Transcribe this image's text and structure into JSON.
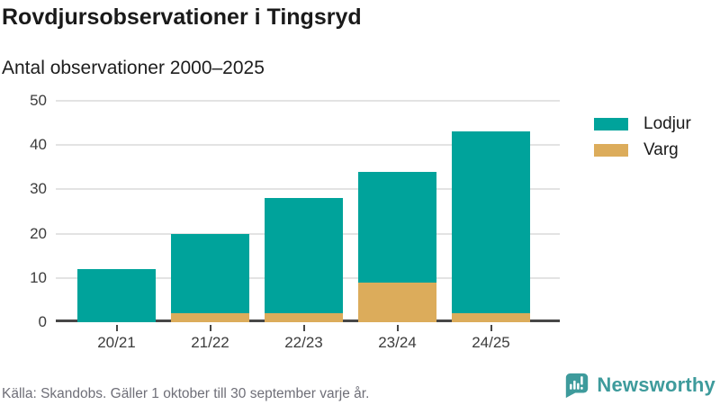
{
  "header": {
    "title": "Rovdjursobservationer i Tingsryd",
    "subtitle": "Antal observationer 2000–2025"
  },
  "chart_data": {
    "type": "bar",
    "stacked": true,
    "title": "Rovdjursobservationer i Tingsryd",
    "subtitle": "Antal observationer 2000–2025",
    "categories": [
      "20/21",
      "21/22",
      "22/23",
      "23/24",
      "24/25"
    ],
    "series": [
      {
        "name": "Lodjur",
        "color": "#00a39b",
        "values": [
          12,
          18,
          26,
          25,
          41
        ]
      },
      {
        "name": "Varg",
        "color": "#dcac5b",
        "values": [
          0,
          2,
          2,
          9,
          2
        ]
      }
    ],
    "stack_order_bottom_to_top": [
      "Varg",
      "Lodjur"
    ],
    "totals": [
      12,
      20,
      28,
      34,
      43
    ],
    "xlabel": "",
    "ylabel": "",
    "ylim": [
      0,
      50
    ],
    "yticks": [
      0,
      10,
      20,
      30,
      40,
      50
    ],
    "grid": true,
    "legend_position": "right",
    "source": "Källa: Skandobs. Gäller 1 oktober till 30 september varje år."
  },
  "legend": [
    {
      "label": "Lodjur",
      "color": "#00a39b"
    },
    {
      "label": "Varg",
      "color": "#dcac5b"
    }
  ],
  "footer": {
    "source": "Källa: Skandobs. Gäller 1 oktober till 30 september varje år.",
    "brand": "Newsworthy"
  },
  "colors": {
    "lodjur": "#00a39b",
    "varg": "#dcac5b",
    "axis": "#474747",
    "gridline": "#e3e3e3",
    "text": "#1a1a1a",
    "muted_text": "#6f6f78",
    "brand": "#3e9b9c"
  }
}
